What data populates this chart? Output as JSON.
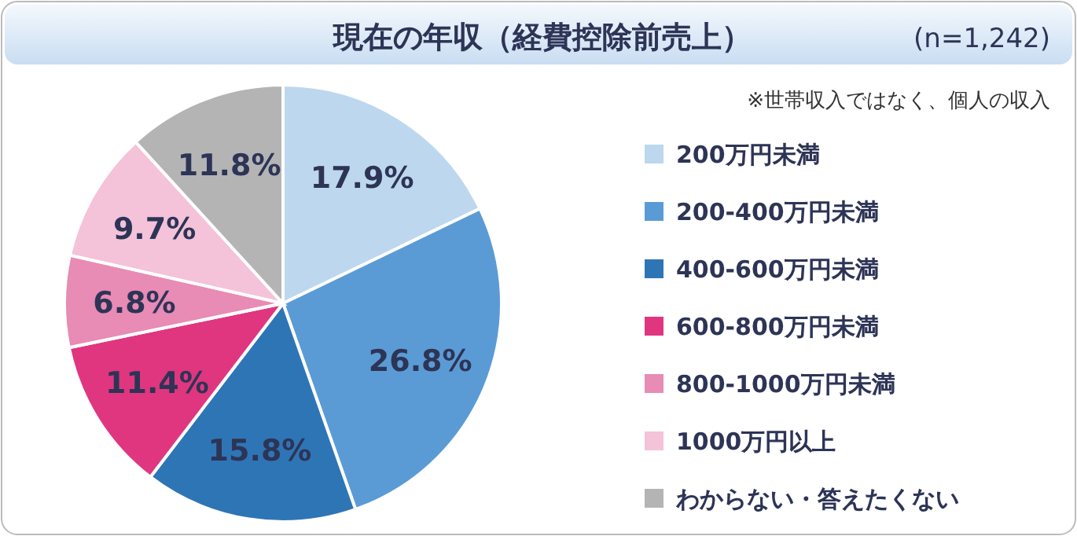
{
  "chart_data": {
    "type": "pie",
    "title": "現在の年収（経費控除前売上）",
    "subtitle": "(n=1,242)",
    "annotations": [
      "※世帯収入ではなく、個人の収入"
    ],
    "categories": [
      "200万円未満",
      "200-400万円未満",
      "400-600万円未満",
      "600-800万円未満",
      "800-1000万円未満",
      "1000万円以上",
      "わからない・答えたくない"
    ],
    "values": [
      17.9,
      26.8,
      15.8,
      11.4,
      6.8,
      9.7,
      11.8
    ],
    "value_labels": [
      "17.9%",
      "26.8%",
      "15.8%",
      "11.4%",
      "6.8%",
      "9.7%",
      "11.8%"
    ],
    "colors": [
      "#bdd7ee",
      "#5b9bd5",
      "#2e75b6",
      "#e0367f",
      "#e88bb5",
      "#f4c2d9",
      "#b4b4b4"
    ],
    "legend": "right"
  }
}
